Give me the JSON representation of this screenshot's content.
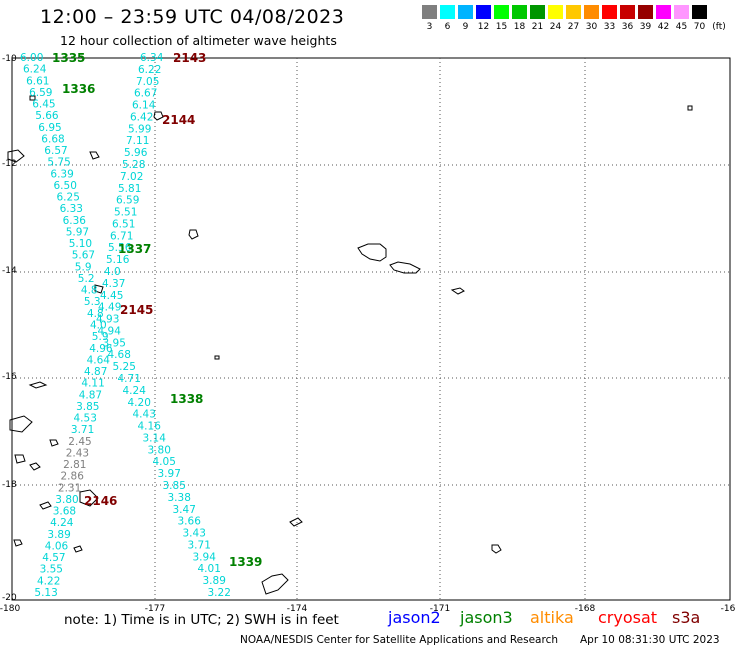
{
  "title": "12:00 – 23:59 UTC 04/08/2023",
  "subtitle": "12 hour collection of altimeter wave heights",
  "legend": {
    "unit": "(ft)",
    "labels": [
      "3",
      "6",
      "9",
      "12",
      "15",
      "18",
      "21",
      "24",
      "27",
      "30",
      "33",
      "36",
      "39",
      "42",
      "45",
      "70"
    ],
    "colors": [
      "#7f7f7f",
      "#00ffff",
      "#00b4ff",
      "#0000ff",
      "#00ff00",
      "#00c800",
      "#009600",
      "#ffff00",
      "#ffc800",
      "#ff8c00",
      "#ff0000",
      "#c80000",
      "#960000",
      "#ff00ff",
      "#ff96ff",
      "#000000"
    ]
  },
  "axes": {
    "lon_labels": [
      "-180",
      "-177",
      "-174",
      "-171",
      "-168",
      "-16"
    ],
    "lat_labels": [
      "-10",
      "-12",
      "-14",
      "-16",
      "-18",
      "-20"
    ]
  },
  "tracks": {
    "track_a": [
      "6.00",
      "6.24",
      "6.61",
      "6.59",
      "6.45",
      "5.66",
      "6.95",
      "6.68",
      "6.57",
      "5.75",
      "6.39",
      "6.50",
      "6.25",
      "6.33",
      "6.36",
      "5.97",
      "5.10",
      "5.67",
      "5.9",
      "5.2",
      "4.8",
      "5.3",
      "4.8",
      "4.0",
      "5.9",
      "4.96",
      "4.64",
      "4.87",
      "4.11",
      "4.87",
      "3.85",
      "4.53",
      "3.71",
      "2.45",
      "2.43",
      "2.81",
      "2.86",
      "2.31",
      "3.80",
      "3.68",
      "4.24",
      "3.89",
      "4.06",
      "4.57",
      "3.55",
      "4.22",
      "5.13"
    ],
    "track_b": [
      "6.34",
      "6.22",
      "7.05",
      "6.67",
      "6.14",
      "6.42",
      "5.99",
      "7.11",
      "5.96",
      "5.28",
      "7.02",
      "5.81",
      "6.59",
      "5.51",
      "6.51",
      "6.71",
      "5.56",
      "5.16",
      "4.0",
      "4.37",
      "4.45",
      "4.49",
      "4.93",
      "4.94",
      "3.95",
      "4.68",
      "5.25",
      "4.71",
      "4.24",
      "4.20",
      "4.43",
      "4.16",
      "3.14",
      "3.80",
      "4.05",
      "3.97",
      "3.85",
      "3.38",
      "3.47",
      "3.66",
      "3.43",
      "3.71",
      "3.94",
      "4.01",
      "3.89",
      "3.22"
    ]
  },
  "time_labels": [
    "1335",
    "1336",
    "2143",
    "2144",
    "1337",
    "2145",
    "1338",
    "2146",
    "1339"
  ],
  "note": "note:  1) Time is in UTC; 2) SWH is in feet",
  "satellites": [
    {
      "name": "jason2",
      "color": "#0000ff"
    },
    {
      "name": "jason3",
      "color": "#008000"
    },
    {
      "name": "altika",
      "color": "#ff8c00"
    },
    {
      "name": "cryosat",
      "color": "#ff0000"
    },
    {
      "name": "s3a",
      "color": "#800000"
    }
  ],
  "credit": "NOAA/NESDIS Center for Satellite Applications and Research",
  "timestamp": "Apr 10 08:31:30 UTC 2023"
}
